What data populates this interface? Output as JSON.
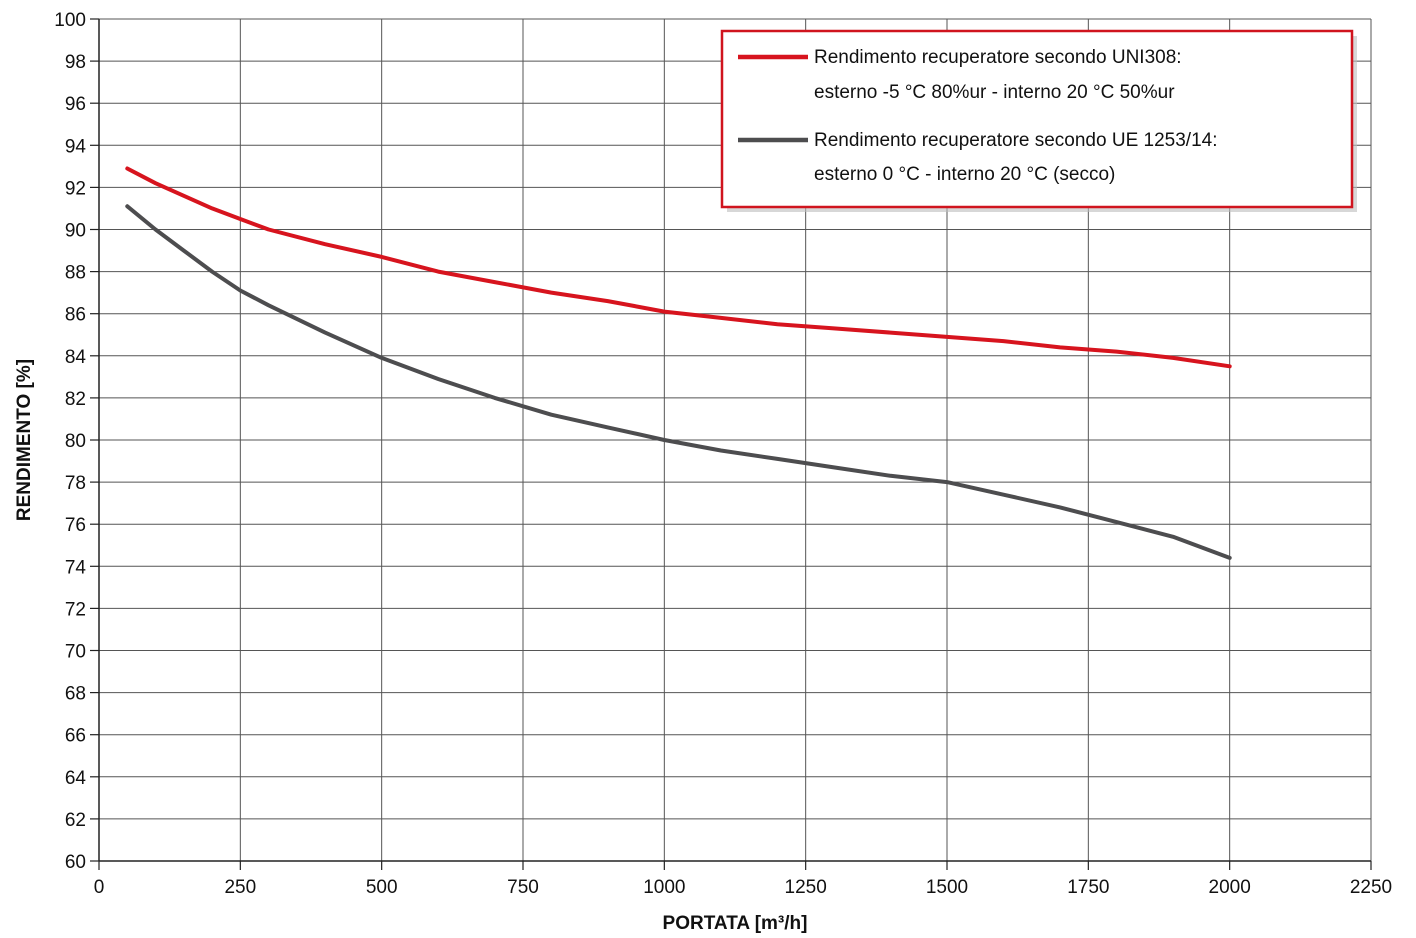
{
  "chart_data": {
    "type": "line",
    "xlabel": "PORTATA [m³/h]",
    "ylabel": "RENDIMENTO [%]",
    "xlim": [
      0,
      2250
    ],
    "ylim": [
      60,
      100
    ],
    "x_ticks": [
      0,
      250,
      500,
      750,
      1000,
      1250,
      1500,
      1750,
      2000,
      2250
    ],
    "y_ticks": [
      60,
      62,
      64,
      66,
      68,
      70,
      72,
      74,
      76,
      78,
      80,
      82,
      84,
      86,
      88,
      90,
      92,
      94,
      96,
      98,
      100
    ],
    "grid": true,
    "legend_position": "top-right",
    "colors": {
      "legend_border": "#d0141e",
      "grid": "#555555"
    },
    "series": [
      {
        "name": "Rendimento recuperatore secondo UNI308:",
        "name_line2": "esterno -5 °C 80%ur - interno 20 °C 50%ur",
        "color": "#d7141e",
        "x": [
          50,
          100,
          150,
          200,
          250,
          300,
          400,
          500,
          600,
          700,
          800,
          900,
          1000,
          1100,
          1200,
          1300,
          1400,
          1500,
          1600,
          1700,
          1800,
          1900,
          2000
        ],
        "y": [
          92.9,
          92.2,
          91.6,
          91.0,
          90.5,
          90.0,
          89.3,
          88.7,
          88.0,
          87.5,
          87.0,
          86.6,
          86.1,
          85.8,
          85.5,
          85.3,
          85.1,
          84.9,
          84.7,
          84.4,
          84.2,
          83.9,
          83.5
        ]
      },
      {
        "name": "Rendimento recuperatore secondo UE 1253/14:",
        "name_line2": "esterno 0 °C - interno 20 °C (secco)",
        "color": "#4d4d4f",
        "x": [
          50,
          100,
          150,
          200,
          250,
          300,
          400,
          500,
          600,
          700,
          800,
          900,
          1000,
          1100,
          1200,
          1300,
          1400,
          1500,
          1600,
          1700,
          1800,
          1900,
          2000
        ],
        "y": [
          91.1,
          90.0,
          89.0,
          88.0,
          87.1,
          86.4,
          85.1,
          83.9,
          82.9,
          82.0,
          81.2,
          80.6,
          80.0,
          79.5,
          79.1,
          78.7,
          78.3,
          78.0,
          77.4,
          76.8,
          76.1,
          75.4,
          74.4
        ]
      }
    ]
  }
}
